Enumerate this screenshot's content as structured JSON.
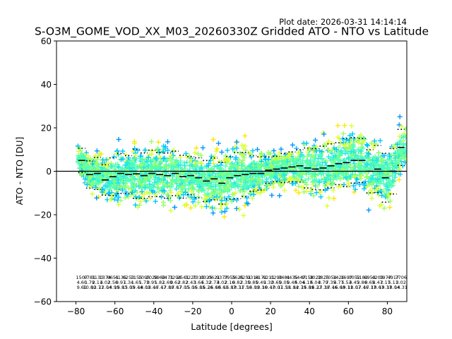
{
  "chart_data": {
    "type": "scatter",
    "title": "S-O3M_GOME_VOD_XX_M03_20260330Z Gridded ATO - NTO vs Latitude",
    "plot_date": "Plot date: 2026-03-31 14:14:14",
    "xlabel": "Latitude [degrees]",
    "ylabel": "ATO - NTO [DU]",
    "xlim": [
      -90,
      90
    ],
    "ylim": [
      -60,
      60
    ],
    "xticks": [
      -80,
      -60,
      -40,
      -20,
      0,
      20,
      40,
      60,
      80
    ],
    "yticks": [
      -60,
      -40,
      -20,
      0,
      20,
      40,
      60
    ],
    "zero_line": 0,
    "marker": "+",
    "colormap": [
      "#0a14d2",
      "#0096ff",
      "#00c8ff",
      "#28e6e6",
      "#50ffb4",
      "#96ff64",
      "#dcff32",
      "#ffe600",
      "#ffb400"
    ],
    "bins": [
      {
        "lat": -77,
        "count": "1507",
        "mean": "4.60",
        "std": "9.61",
        "median": 5.0
      },
      {
        "lat": -73,
        "count": "6781",
        "mean": "1.79",
        "std": "10.80",
        "median": -1.5
      },
      {
        "lat": -69,
        "count": "3130",
        "mean": "2.11",
        "std": "12.71",
        "median": -1.0
      },
      {
        "lat": -65,
        "count": "1374",
        "mean": "4.02",
        "std": "12.04",
        "median": -4.0
      },
      {
        "lat": -61,
        "count": "0651",
        "mean": "2.56",
        "std": "14.99",
        "median": -2.5
      },
      {
        "lat": -57,
        "count": "4135",
        "mean": "0.97",
        "std": "15.83",
        "median": -1.0
      },
      {
        "lat": -53,
        "count": "6253",
        "mean": "1.34",
        "std": "15.05",
        "median": -1.5
      },
      {
        "lat": -49,
        "count": "1155",
        "mean": "1.65",
        "std": "19.44",
        "median": -1.2
      },
      {
        "lat": -45,
        "count": "1095",
        "mean": "1.73",
        "std": "18.01",
        "median": -2.0
      },
      {
        "lat": -41,
        "count": "2028",
        "mean": "0.95",
        "std": "18.46",
        "median": -1.0
      },
      {
        "lat": -37,
        "count": "5963",
        "mean": "1.82",
        "std": "17.47",
        "median": -1.5
      },
      {
        "lat": -33,
        "count": "9471",
        "mean": "1.69",
        "std": "17.88",
        "median": -2.0
      },
      {
        "lat": -29,
        "count": "3294",
        "mean": "0.62",
        "std": "17.67",
        "median": -1.0
      },
      {
        "lat": -25,
        "count": "2541",
        "mean": "2.82",
        "std": "17.05",
        "median": -2.5
      },
      {
        "lat": -21,
        "count": "3220",
        "mean": "2.43",
        "std": "15.06",
        "median": -2.0
      },
      {
        "lat": -17,
        "count": "7310",
        "mean": "3.64",
        "std": "15.85",
        "median": -3.0
      },
      {
        "lat": -13,
        "count": "0325",
        "mean": "5.32",
        "std": "16.26",
        "median": -4.5
      },
      {
        "lat": -9,
        "count": "0621",
        "mean": "2.73",
        "std": "16.60",
        "median": -3.5
      },
      {
        "lat": -5,
        "count": "9377",
        "mean": "4.02",
        "std": "16.61",
        "median": -5.5
      },
      {
        "lat": -1,
        "count": "3955",
        "mean": "2.16",
        "std": "16.87",
        "median": -3.0
      },
      {
        "lat": 3,
        "count": "3625",
        "mean": "0.82",
        "std": "18.31",
        "median": -2.0
      },
      {
        "lat": 7,
        "count": "8251",
        "mean": "2.35",
        "std": "17.50",
        "median": -1.5
      },
      {
        "lat": 11,
        "count": "9314",
        "mean": "0.85",
        "std": "14.09",
        "median": -1.0
      },
      {
        "lat": 15,
        "count": "8172",
        "mean": "0.49",
        "std": "13.16",
        "median": -1.0
      },
      {
        "lat": 19,
        "count": "6211",
        "mean": "1.32",
        "std": "10.47",
        "median": 0.5
      },
      {
        "lat": 23,
        "count": "0290",
        "mean": "0.65",
        "std": "10.07",
        "median": 1.0
      },
      {
        "lat": 27,
        "count": "3481",
        "mean": "0.05",
        "std": "11.58",
        "median": 1.5
      },
      {
        "lat": 31,
        "count": "4435",
        "mean": "0.48",
        "std": "11.84",
        "median": 2.0
      },
      {
        "lat": 35,
        "count": "5447",
        "mean": "5.04",
        "std": "12.79",
        "median": 2.5
      },
      {
        "lat": 39,
        "count": "9158",
        "mean": "6.18",
        "std": "15.89",
        "median": 1.5
      },
      {
        "lat": 43,
        "count": "3022",
        "mean": "5.04",
        "std": "16.23",
        "median": 1.0
      },
      {
        "lat": 47,
        "count": "3825",
        "mean": "3.79",
        "std": "17.38",
        "median": 1.5
      },
      {
        "lat": 51,
        "count": "7054",
        "mean": "7.35",
        "std": "17.46",
        "median": 2.5
      },
      {
        "lat": 55,
        "count": "1426",
        "mean": "4.77",
        "std": "16.68",
        "median": 3.5
      },
      {
        "lat": 59,
        "count": "1697",
        "mean": "5.53",
        "std": "19.11",
        "median": 4.0
      },
      {
        "lat": 63,
        "count": "0052",
        "mean": "4.45",
        "std": "18.07",
        "median": 5.0
      },
      {
        "lat": 67,
        "count": "5182",
        "mean": "3.86",
        "std": "17.46",
        "median": 5.0
      },
      {
        "lat": 71,
        "count": "6953",
        "mean": "0.65",
        "std": "17.17",
        "median": 0.0
      },
      {
        "lat": 75,
        "count": "4203",
        "mean": "8.47",
        "std": "18.67",
        "median": 1.0
      },
      {
        "lat": 79,
        "count": "0977",
        "mean": "2.17",
        "std": "19.37",
        "median": -3.0
      },
      {
        "lat": 83,
        "count": "4917",
        "mean": "5.11",
        "std": "18.04",
        "median": 0.0
      },
      {
        "lat": 87,
        "count": "7706",
        "mean": "3.02",
        "std": "14.31",
        "median": 11.0
      }
    ]
  }
}
